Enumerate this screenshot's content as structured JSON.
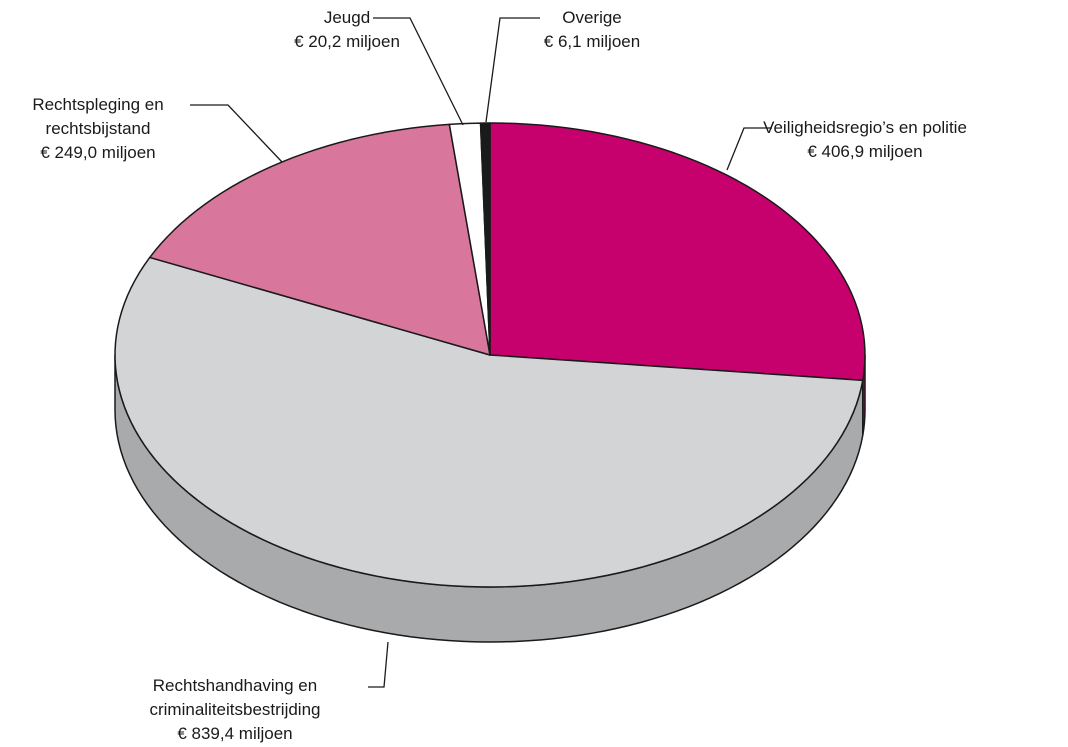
{
  "chart_data": {
    "type": "pie",
    "categories": [
      "Veiligheidsregio’s en politie",
      "Rechtshandhaving en criminaliteitsbestrijding",
      "Rechtspleging en rechtsbijstand",
      "Jeugd",
      "Overige"
    ],
    "values": [
      406.9,
      839.4,
      249.0,
      20.2,
      6.1
    ],
    "value_labels": [
      "€ 406,9 miljoen",
      "€ 839,4 miljoen",
      "€ 249,0 miljoen",
      "€ 20,2 miljoen",
      "€ 6,1 miljoen"
    ],
    "colors": [
      "#c6006d",
      "#d3d4d6",
      "#d8779b",
      "#ffffff",
      "#1a1a1a"
    ]
  }
}
